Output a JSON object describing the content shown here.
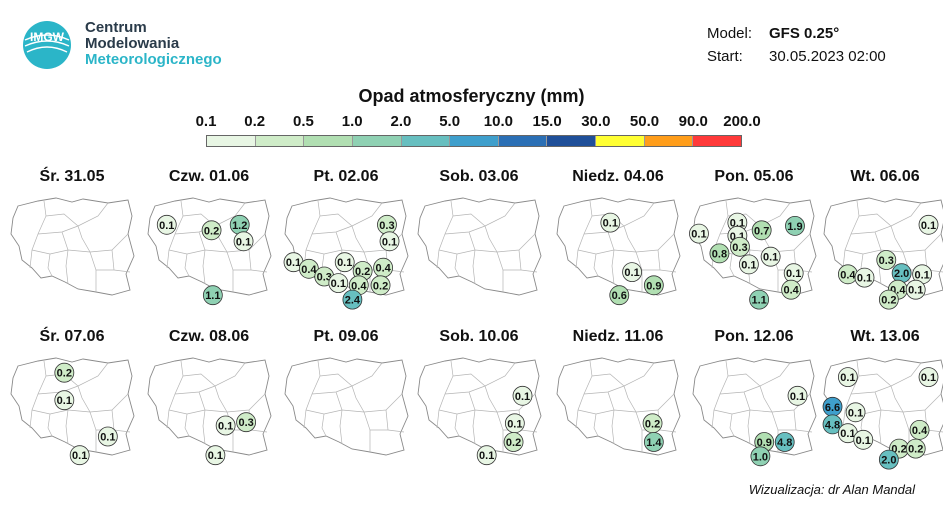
{
  "logo": {
    "icon": "imgw-logo-icon",
    "line1": "Centrum",
    "line2": "Modelowania",
    "line3": "Meteorologicznego",
    "badge": "IMGW"
  },
  "model": {
    "label": "Model:",
    "value": "GFS 0.25°"
  },
  "start": {
    "label": "Start:",
    "value": "30.05.2023 02:00"
  },
  "credit": "Wizualizacja: dr Alan Mandal",
  "chart_data": {
    "type": "map",
    "title": "Opad atmosferyczny (mm)",
    "colorbar": {
      "ticks": [
        "0.1",
        "0.2",
        "0.5",
        "1.0",
        "2.0",
        "5.0",
        "10.0",
        "15.0",
        "30.0",
        "50.0",
        "90.0",
        "200.0"
      ],
      "colors": [
        "#e8f6e4",
        "#cfecc8",
        "#b1dfb2",
        "#8fd1b3",
        "#67bfc0",
        "#3f9fcc",
        "#2b6fb5",
        "#1f4f99",
        "#ffff33",
        "#ff9d1a",
        "#ff3a3a"
      ]
    },
    "panels": [
      {
        "day": "Śr. 31.05",
        "points": []
      },
      {
        "day": "Czw. 01.06",
        "points": [
          {
            "value": "0.1",
            "pos": [
              0.17,
              0.28
            ]
          },
          {
            "value": "0.2",
            "pos": [
              0.52,
              0.33
            ]
          },
          {
            "value": "1.2",
            "pos": [
              0.74,
              0.28
            ]
          },
          {
            "value": "0.1",
            "pos": [
              0.77,
              0.43
            ]
          },
          {
            "value": "1.1",
            "pos": [
              0.53,
              0.92
            ]
          }
        ]
      },
      {
        "day": "Pt. 02.06",
        "points": [
          {
            "value": "0.3",
            "pos": [
              0.82,
              0.28
            ]
          },
          {
            "value": "0.1",
            "pos": [
              0.84,
              0.43
            ]
          },
          {
            "value": "0.1",
            "pos": [
              0.09,
              0.62
            ]
          },
          {
            "value": "0.4",
            "pos": [
              0.21,
              0.68
            ]
          },
          {
            "value": "0.1",
            "pos": [
              0.49,
              0.62
            ]
          },
          {
            "value": "0.3",
            "pos": [
              0.33,
              0.75
            ]
          },
          {
            "value": "0.1",
            "pos": [
              0.44,
              0.81
            ]
          },
          {
            "value": "0.2",
            "pos": [
              0.63,
              0.7
            ]
          },
          {
            "value": "0.4",
            "pos": [
              0.79,
              0.67
            ]
          },
          {
            "value": "0.4",
            "pos": [
              0.6,
              0.83
            ]
          },
          {
            "value": "0.2",
            "pos": [
              0.77,
              0.83
            ]
          },
          {
            "value": "2.4",
            "pos": [
              0.55,
              0.96
            ]
          }
        ]
      },
      {
        "day": "Sob. 03.06",
        "points": []
      },
      {
        "day": "Niedz. 04.06",
        "points": [
          {
            "value": "0.1",
            "pos": [
              0.44,
              0.26
            ]
          },
          {
            "value": "0.1",
            "pos": [
              0.61,
              0.71
            ]
          },
          {
            "value": "0.9",
            "pos": [
              0.78,
              0.83
            ]
          },
          {
            "value": "0.6",
            "pos": [
              0.51,
              0.92
            ]
          }
        ]
      },
      {
        "day": "Pon. 05.06",
        "points": [
          {
            "value": "0.1",
            "pos": [
              0.37,
              0.26
            ]
          },
          {
            "value": "0.7",
            "pos": [
              0.56,
              0.33
            ]
          },
          {
            "value": "1.9",
            "pos": [
              0.82,
              0.29
            ]
          },
          {
            "value": "0.1",
            "pos": [
              0.07,
              0.36
            ]
          },
          {
            "value": "0.1",
            "pos": [
              0.37,
              0.38
            ]
          },
          {
            "value": "0.3",
            "pos": [
              0.39,
              0.48
            ]
          },
          {
            "value": "0.8",
            "pos": [
              0.23,
              0.54
            ]
          },
          {
            "value": "0.1",
            "pos": [
              0.63,
              0.57
            ]
          },
          {
            "value": "0.1",
            "pos": [
              0.46,
              0.64
            ]
          },
          {
            "value": "0.1",
            "pos": [
              0.81,
              0.72
            ]
          },
          {
            "value": "0.4",
            "pos": [
              0.79,
              0.87
            ]
          },
          {
            "value": "1.1",
            "pos": [
              0.54,
              0.96
            ]
          }
        ]
      },
      {
        "day": "Wt. 06.06",
        "points": [
          {
            "value": "0.1",
            "pos": [
              0.84,
              0.28
            ]
          },
          {
            "value": "0.3",
            "pos": [
              0.51,
              0.6
            ]
          },
          {
            "value": "0.4",
            "pos": [
              0.21,
              0.73
            ]
          },
          {
            "value": "0.1",
            "pos": [
              0.34,
              0.76
            ]
          },
          {
            "value": "2.0",
            "pos": [
              0.63,
              0.72
            ]
          },
          {
            "value": "0.1",
            "pos": [
              0.79,
              0.73
            ]
          },
          {
            "value": "0.4",
            "pos": [
              0.6,
              0.87
            ]
          },
          {
            "value": "0.1",
            "pos": [
              0.74,
              0.87
            ]
          },
          {
            "value": "0.2",
            "pos": [
              0.53,
              0.96
            ]
          }
        ]
      },
      {
        "day": "Śr. 07.06",
        "points": [
          {
            "value": "0.2",
            "pos": [
              0.44,
              0.17
            ]
          },
          {
            "value": "0.1",
            "pos": [
              0.44,
              0.42
            ]
          },
          {
            "value": "0.1",
            "pos": [
              0.78,
              0.75
            ]
          },
          {
            "value": "0.1",
            "pos": [
              0.56,
              0.92
            ]
          }
        ]
      },
      {
        "day": "Czw. 08.06",
        "points": [
          {
            "value": "0.1",
            "pos": [
              0.63,
              0.65
            ]
          },
          {
            "value": "0.3",
            "pos": [
              0.79,
              0.62
            ]
          },
          {
            "value": "0.1",
            "pos": [
              0.55,
              0.92
            ]
          }
        ]
      },
      {
        "day": "Pt. 09.06",
        "points": []
      },
      {
        "day": "Sob. 10.06",
        "points": [
          {
            "value": "0.1",
            "pos": [
              0.84,
              0.38
            ]
          },
          {
            "value": "0.1",
            "pos": [
              0.78,
              0.63
            ]
          },
          {
            "value": "0.2",
            "pos": [
              0.77,
              0.8
            ]
          },
          {
            "value": "0.1",
            "pos": [
              0.56,
              0.92
            ]
          }
        ]
      },
      {
        "day": "Niedz. 11.06",
        "points": [
          {
            "value": "0.2",
            "pos": [
              0.77,
              0.63
            ]
          },
          {
            "value": "1.4",
            "pos": [
              0.78,
              0.8
            ]
          }
        ]
      },
      {
        "day": "Pon. 12.06",
        "points": [
          {
            "value": "0.1",
            "pos": [
              0.84,
              0.38
            ]
          },
          {
            "value": "0.9",
            "pos": [
              0.58,
              0.8
            ]
          },
          {
            "value": "4.8",
            "pos": [
              0.74,
              0.8
            ]
          },
          {
            "value": "1.0",
            "pos": [
              0.55,
              0.93
            ]
          }
        ]
      },
      {
        "day": "Wt. 13.06",
        "points": [
          {
            "value": "0.1",
            "pos": [
              0.21,
              0.21
            ]
          },
          {
            "value": "0.1",
            "pos": [
              0.84,
              0.21
            ]
          },
          {
            "value": "6.6",
            "pos": [
              0.09,
              0.48
            ]
          },
          {
            "value": "0.1",
            "pos": [
              0.27,
              0.53
            ]
          },
          {
            "value": "4.8",
            "pos": [
              0.09,
              0.64
            ]
          },
          {
            "value": "0.1",
            "pos": [
              0.21,
              0.72
            ]
          },
          {
            "value": "0.1",
            "pos": [
              0.33,
              0.78
            ]
          },
          {
            "value": "0.4",
            "pos": [
              0.77,
              0.69
            ]
          },
          {
            "value": "0.2",
            "pos": [
              0.61,
              0.86
            ]
          },
          {
            "value": "0.2",
            "pos": [
              0.74,
              0.86
            ]
          },
          {
            "value": "2.0",
            "pos": [
              0.53,
              0.96
            ]
          }
        ]
      }
    ]
  }
}
